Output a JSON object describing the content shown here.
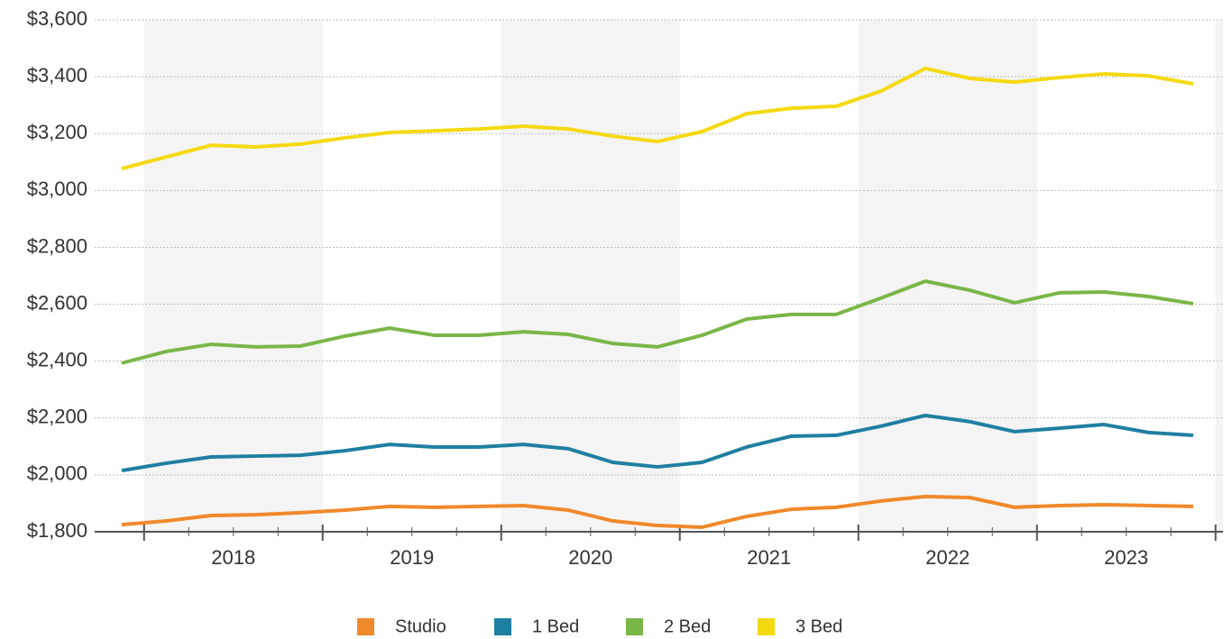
{
  "chart_data": {
    "type": "line",
    "x_labels": [
      "2018",
      "2019",
      "2020",
      "2021",
      "2022",
      "2023"
    ],
    "series": [
      {
        "name": "Studio",
        "color": "#f0892b",
        "values": [
          1825,
          1838,
          1857,
          1860,
          1867,
          1876,
          1889,
          1886,
          1889,
          1892,
          1876,
          1838,
          1822,
          1816,
          1854,
          1879,
          1886,
          1908,
          1924,
          1920,
          1886,
          1892,
          1895,
          1892,
          1889
        ]
      },
      {
        "name": "1 Bed",
        "color": "#1f7fa1",
        "values": [
          2015,
          2041,
          2063,
          2066,
          2069,
          2085,
          2107,
          2098,
          2098,
          2107,
          2092,
          2044,
          2028,
          2044,
          2098,
          2136,
          2139,
          2171,
          2209,
          2187,
          2152,
          2164,
          2177,
          2149,
          2139
        ]
      },
      {
        "name": "2 Bed",
        "color": "#7ab648",
        "values": [
          2393,
          2434,
          2459,
          2450,
          2453,
          2488,
          2516,
          2491,
          2491,
          2503,
          2494,
          2462,
          2450,
          2491,
          2548,
          2564,
          2564,
          2621,
          2681,
          2649,
          2605,
          2640,
          2643,
          2627,
          2602
        ]
      },
      {
        "name": "3 Bed",
        "color": "#f5d90f",
        "values": [
          3077,
          3118,
          3159,
          3153,
          3163,
          3185,
          3204,
          3210,
          3216,
          3226,
          3216,
          3191,
          3172,
          3207,
          3270,
          3289,
          3296,
          3349,
          3429,
          3394,
          3381,
          3397,
          3410,
          3403,
          3375
        ]
      }
    ],
    "ylim": [
      1800,
      3600
    ],
    "yticks": [
      {
        "value": 1800,
        "label": "$1,800"
      },
      {
        "value": 2000,
        "label": "$2,000"
      },
      {
        "value": 2200,
        "label": "$2,200"
      },
      {
        "value": 2400,
        "label": "$2,400"
      },
      {
        "value": 2600,
        "label": "$2,600"
      },
      {
        "value": 2800,
        "label": "$2,800"
      },
      {
        "value": 3000,
        "label": "$3,000"
      },
      {
        "value": 3200,
        "label": "$3,200"
      },
      {
        "value": 3400,
        "label": "$3,400"
      },
      {
        "value": 3600,
        "label": "$3,600"
      }
    ],
    "grid": true,
    "legend": "bottom"
  }
}
